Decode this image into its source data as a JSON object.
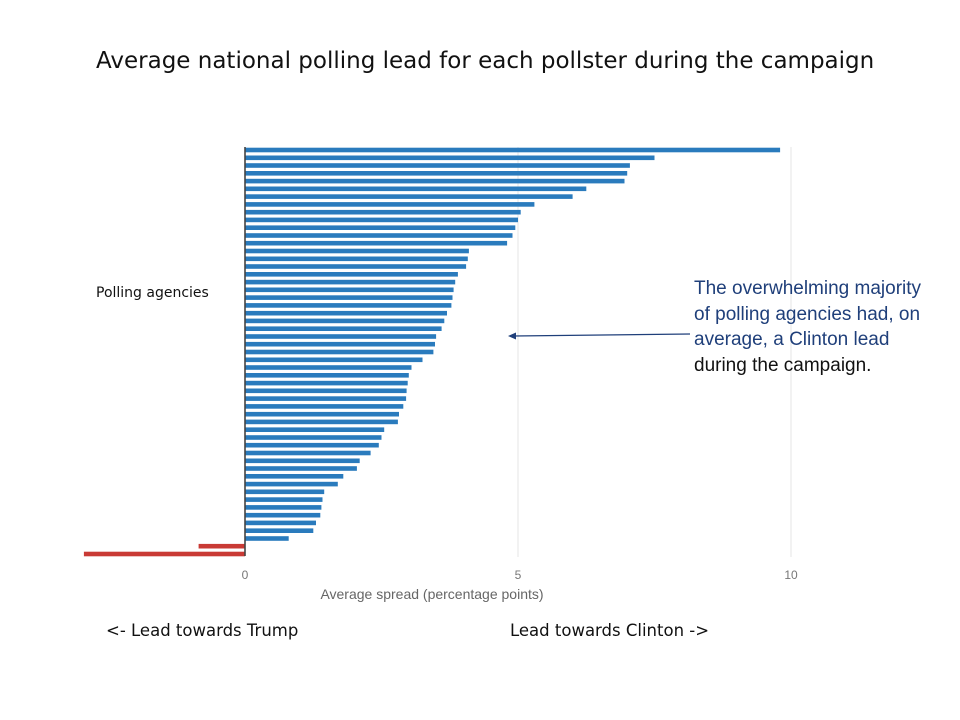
{
  "title": "Average national polling lead for each pollster during the campaign",
  "annotation": {
    "line1": "The overwhelming majority of polling agencies had, on average, a Clinton lead",
    "line2": "during the campaign."
  },
  "lead_left": "<- Lead towards Trump",
  "lead_right": "Lead towards Clinton ->",
  "colors": {
    "clinton": "#2a7bbd",
    "trump": "#c93a35",
    "annotation": "#1f3f7a"
  },
  "chart_data": {
    "type": "bar",
    "orientation": "horizontal",
    "title": "Average national polling lead for each pollster during the campaign",
    "xlabel": "Average spread (percentage points)",
    "ylabel": "Polling agencies",
    "xlim": [
      -3,
      10.5
    ],
    "xticks": [
      0,
      5,
      10
    ],
    "grid": true,
    "values": [
      9.8,
      7.5,
      7.05,
      7.0,
      6.95,
      6.25,
      6.0,
      5.3,
      5.05,
      5.0,
      4.95,
      4.9,
      4.8,
      4.1,
      4.08,
      4.05,
      3.9,
      3.85,
      3.82,
      3.8,
      3.78,
      3.7,
      3.65,
      3.6,
      3.5,
      3.48,
      3.45,
      3.25,
      3.05,
      3.0,
      2.98,
      2.96,
      2.95,
      2.9,
      2.82,
      2.8,
      2.55,
      2.5,
      2.45,
      2.3,
      2.1,
      2.05,
      1.8,
      1.7,
      1.45,
      1.42,
      1.4,
      1.38,
      1.3,
      1.25,
      0.8,
      -0.85,
      -2.95
    ]
  }
}
